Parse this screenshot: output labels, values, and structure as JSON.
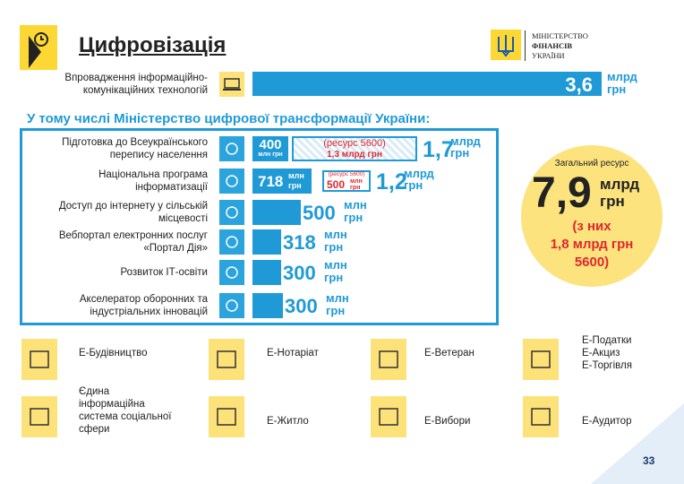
{
  "header": {
    "title": "Цифровізація",
    "ministry": [
      "МІНІСТЕРСТВО",
      "ФІНАНСІВ",
      "УКРАЇНИ"
    ]
  },
  "ict": {
    "label": [
      "Впровадження інформаційно-",
      "комунікаційних технологій"
    ],
    "value": "3,6",
    "unit": [
      "млрд",
      "грн"
    ]
  },
  "subtitle": "У тому числі Міністерство цифрової трансформації України:",
  "items": [
    {
      "label": [
        "Підготовка до Всеукраїнського",
        "перепису населення"
      ],
      "amount": "400",
      "amount_unit": "млн грн",
      "extra_note": "(ресурс 5600)",
      "extra_value": "1,3 млрд грн",
      "total": "1,7",
      "total_unit": [
        "млрд",
        "грн"
      ]
    },
    {
      "label": [
        "Національна програма",
        "інформатизації"
      ],
      "amount": "718",
      "amount_unit": [
        "млн",
        "грн"
      ],
      "extra_note": "(ресурс 5600)",
      "extra_value": "500",
      "extra_unit": [
        "млн",
        "грн"
      ],
      "total": "1,2",
      "total_unit": [
        "млрд",
        "грн"
      ]
    },
    {
      "label": [
        "Доступ до інтернету у сільській",
        "місцевості"
      ],
      "amount": "500",
      "amount_unit": [
        "млн",
        "грн"
      ]
    },
    {
      "label": [
        "Вебпортал електронних послуг",
        "«Портал Дія»"
      ],
      "amount": "318",
      "amount_unit": [
        "млн",
        "грн"
      ]
    },
    {
      "label": [
        "Розвиток ІТ-освіти"
      ],
      "amount": "300",
      "amount_unit": [
        "млн",
        "грн"
      ]
    },
    {
      "label": [
        "Акселератор оборонних та",
        "індустріальних інновацій"
      ],
      "amount": "300",
      "amount_unit": [
        "млн",
        "грн"
      ]
    }
  ],
  "total_resource": {
    "label": "Загальний ресурс",
    "value": "7,9",
    "unit": [
      "млрд",
      "грн"
    ],
    "note": [
      "(з них",
      "1,8 млрд грн",
      "5600)"
    ]
  },
  "services": [
    {
      "label": [
        "Е-Будівництво"
      ]
    },
    {
      "label": [
        "Е-Нотаріат"
      ]
    },
    {
      "label": [
        "Е-Ветеран"
      ]
    },
    {
      "label": [
        "Е-Податки",
        "Е-Акциз",
        "Е-Торгівля"
      ]
    },
    {
      "label": [
        "Єдина",
        "інформаційна",
        "система соціальної",
        "сфери"
      ]
    },
    {
      "label": [
        "Е-Житло"
      ]
    },
    {
      "label": [
        "Е-Вибори"
      ]
    },
    {
      "label": [
        "Е-Аудитор"
      ]
    }
  ],
  "page_number": "33"
}
